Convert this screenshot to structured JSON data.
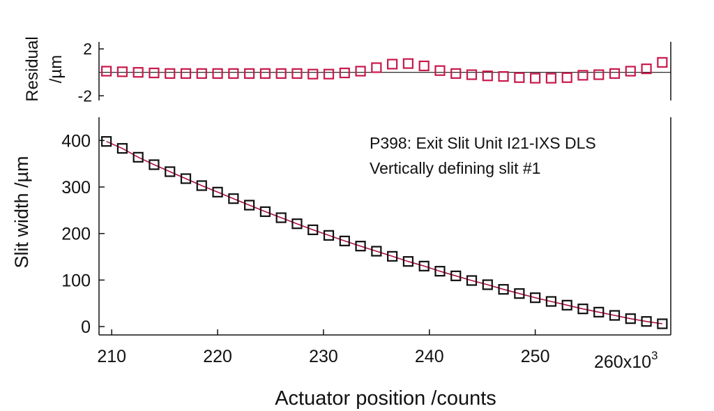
{
  "chart_data": [
    {
      "type": "scatter",
      "panel": "residual",
      "ylabel_line1": "Residual",
      "ylabel_line2": "/µm",
      "ylim": [
        -2.4,
        2.6
      ],
      "xlim": [
        208800,
        262800
      ],
      "yticks": [
        2,
        -2
      ],
      "ytick_labels": [
        "2",
        "-2"
      ],
      "zero_line": true,
      "marker_color": "#c8194b",
      "x": [
        209500,
        211000,
        212500,
        214000,
        215500,
        217000,
        218500,
        220000,
        221500,
        223000,
        224500,
        226000,
        227500,
        229000,
        230500,
        232000,
        233500,
        235000,
        236500,
        238000,
        239500,
        241000,
        242500,
        244000,
        245500,
        247000,
        248500,
        250000,
        251500,
        253000,
        254500,
        256000,
        257500,
        259000,
        260500,
        262000
      ],
      "y": [
        0.1,
        0.05,
        0.0,
        -0.05,
        -0.1,
        -0.1,
        -0.1,
        -0.1,
        -0.1,
        -0.1,
        -0.1,
        -0.1,
        -0.1,
        -0.15,
        -0.15,
        -0.05,
        0.1,
        0.4,
        0.7,
        0.75,
        0.55,
        0.15,
        -0.1,
        -0.2,
        -0.3,
        -0.35,
        -0.45,
        -0.5,
        -0.5,
        -0.45,
        -0.25,
        -0.2,
        -0.1,
        0.1,
        0.3,
        0.85
      ]
    },
    {
      "type": "scatter",
      "panel": "main",
      "ylabel": "Slit width /µm",
      "xlabel": "Actuator position /counts",
      "xlim": [
        208800,
        262800
      ],
      "ylim": [
        -18,
        450
      ],
      "xticks": [
        210000,
        220000,
        230000,
        240000,
        250000
      ],
      "xtick_labels": [
        "210",
        "220",
        "230",
        "240",
        "250"
      ],
      "x_end_label": "260x10",
      "x_end_exponent": "3",
      "yticks": [
        0,
        100,
        200,
        300,
        400
      ],
      "ytick_labels": [
        "0",
        "100",
        "200",
        "300",
        "400"
      ],
      "annotation_line1": "P398: Exit Slit Unit I21-IXS DLS",
      "annotation_line2": "Vertically defining slit #1",
      "marker_color": "#111111",
      "fit_color": "#b0103f",
      "x": [
        209500,
        211000,
        212500,
        214000,
        215500,
        217000,
        218500,
        220000,
        221500,
        223000,
        224500,
        226000,
        227500,
        229000,
        230500,
        232000,
        233500,
        235000,
        236500,
        238000,
        239500,
        241000,
        242500,
        244000,
        245500,
        247000,
        248500,
        250000,
        251500,
        253000,
        254500,
        256000,
        257500,
        259000,
        260500,
        262000
      ],
      "y": [
        398,
        383,
        364,
        348,
        333,
        318,
        303,
        289,
        275,
        261,
        247,
        234,
        221,
        208,
        196,
        184,
        173,
        162,
        151,
        140,
        130,
        119,
        109,
        99,
        90,
        80,
        71,
        62,
        54,
        46,
        38,
        31,
        24,
        17,
        11,
        6
      ]
    }
  ]
}
